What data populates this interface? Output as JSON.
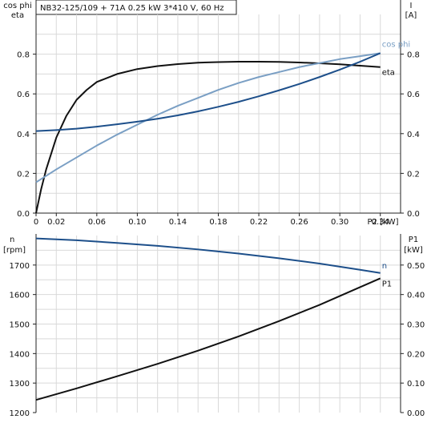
{
  "header": {
    "title": "NB32-125/109 + 71A   0.25 kW   3*410 V, 60 Hz"
  },
  "colors": {
    "eta": "#111111",
    "cosphi": "#7a9fc4",
    "current": "#1d4f8a",
    "speed": "#1d4f8a",
    "p1": "#111111"
  },
  "chart_data": [
    {
      "type": "line",
      "left_axis_label_1": "cos phi",
      "left_axis_label_2": "eta",
      "right_axis_label_1": "I",
      "right_axis_label_2": "[A]",
      "xlabel": "P2 [kW]",
      "xlim": [
        0,
        0.36
      ],
      "ylim_left": [
        0,
        1.0
      ],
      "ylim_right": [
        0,
        1.0
      ],
      "x_ticks": [
        "0",
        "0.02",
        "0.06",
        "0.10",
        "0.14",
        "0.18",
        "0.22",
        "0.26",
        "0.30",
        "0.34"
      ],
      "x_tick_values": [
        0,
        0.02,
        0.06,
        0.1,
        0.14,
        0.18,
        0.22,
        0.26,
        0.3,
        0.34
      ],
      "y_ticks_left": [
        "0.0",
        "0.2",
        "0.4",
        "0.6",
        "0.8"
      ],
      "y_ticks_right": [
        "0.0",
        "0.2",
        "0.4",
        "0.6",
        "0.8"
      ],
      "y_tick_values": [
        0,
        0.2,
        0.4,
        0.6,
        0.8
      ],
      "grid": true,
      "series": [
        {
          "name": "eta",
          "key": "eta",
          "x": [
            0.0,
            0.005,
            0.01,
            0.02,
            0.03,
            0.04,
            0.05,
            0.06,
            0.08,
            0.1,
            0.12,
            0.14,
            0.16,
            0.18,
            0.2,
            0.22,
            0.24,
            0.26,
            0.28,
            0.3,
            0.32,
            0.34
          ],
          "y": [
            0.0,
            0.12,
            0.22,
            0.38,
            0.49,
            0.57,
            0.62,
            0.66,
            0.7,
            0.725,
            0.74,
            0.75,
            0.757,
            0.76,
            0.762,
            0.762,
            0.761,
            0.758,
            0.754,
            0.749,
            0.742,
            0.735
          ]
        },
        {
          "name": "cos phi",
          "key": "cosphi",
          "x": [
            0.0,
            0.02,
            0.04,
            0.06,
            0.08,
            0.1,
            0.12,
            0.14,
            0.16,
            0.18,
            0.2,
            0.22,
            0.24,
            0.26,
            0.28,
            0.3,
            0.32,
            0.34
          ],
          "y": [
            0.155,
            0.22,
            0.28,
            0.34,
            0.395,
            0.445,
            0.495,
            0.54,
            0.58,
            0.62,
            0.655,
            0.685,
            0.71,
            0.735,
            0.755,
            0.775,
            0.79,
            0.805
          ]
        },
        {
          "name": "",
          "key": "current",
          "x": [
            0.0,
            0.02,
            0.04,
            0.06,
            0.08,
            0.1,
            0.12,
            0.14,
            0.16,
            0.18,
            0.2,
            0.22,
            0.24,
            0.26,
            0.28,
            0.3,
            0.32,
            0.34
          ],
          "y": [
            0.413,
            0.418,
            0.425,
            0.435,
            0.447,
            0.46,
            0.475,
            0.492,
            0.512,
            0.535,
            0.56,
            0.588,
            0.618,
            0.65,
            0.685,
            0.722,
            0.762,
            0.805
          ]
        }
      ],
      "labels": {
        "eta": "eta",
        "cosphi": "cos phi"
      }
    },
    {
      "type": "line",
      "left_axis_label_1": "n",
      "left_axis_label_2": "[rpm]",
      "right_axis_label_1": "P1",
      "right_axis_label_2": "[kW]",
      "xlim": [
        0,
        0.36
      ],
      "ylim_left": [
        1200,
        1800
      ],
      "ylim_right": [
        0,
        0.6
      ],
      "y_ticks_left": [
        "1200",
        "1300",
        "1400",
        "1500",
        "1600",
        "1700"
      ],
      "y_tick_values_left": [
        1200,
        1300,
        1400,
        1500,
        1600,
        1700
      ],
      "y_ticks_right": [
        "0.00",
        "0.10",
        "0.20",
        "0.30",
        "0.40",
        "0.50"
      ],
      "y_tick_values_right": [
        0,
        0.1,
        0.2,
        0.3,
        0.4,
        0.5
      ],
      "grid": true,
      "series": [
        {
          "name": "n",
          "key": "speed",
          "axis": "left",
          "x": [
            0.0,
            0.04,
            0.08,
            0.12,
            0.16,
            0.2,
            0.24,
            0.28,
            0.32,
            0.34
          ],
          "y": [
            1790,
            1784,
            1775,
            1765,
            1753,
            1739,
            1723,
            1705,
            1684,
            1673
          ]
        },
        {
          "name": "P1",
          "key": "p1",
          "axis": "right",
          "x": [
            0.0,
            0.04,
            0.08,
            0.12,
            0.16,
            0.2,
            0.24,
            0.28,
            0.32,
            0.34
          ],
          "y": [
            0.043,
            0.082,
            0.123,
            0.165,
            0.21,
            0.258,
            0.31,
            0.365,
            0.425,
            0.455
          ]
        }
      ],
      "labels": {
        "speed": "n",
        "p1": "P1"
      }
    }
  ]
}
